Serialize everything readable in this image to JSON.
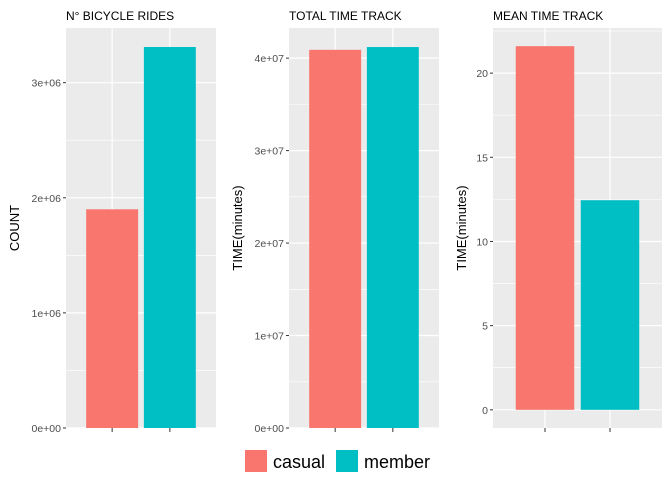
{
  "colors": {
    "casual": "#F8766D",
    "member": "#00BFC4",
    "panel": "#EBEBEB",
    "grid": "#FFFFFF"
  },
  "legend": {
    "items": [
      {
        "label": "casual",
        "color": "#F8766D"
      },
      {
        "label": "member",
        "color": "#00BFC4"
      }
    ]
  },
  "chart_data": [
    {
      "type": "bar",
      "title": "N° BICYCLE RIDES",
      "ylabel": "COUNT",
      "xlabel": "",
      "categories": [
        "casual",
        "member"
      ],
      "values": [
        1900000,
        3310000
      ],
      "ylim": [
        0,
        3475000
      ],
      "yticks": [
        0,
        1000000,
        2000000,
        3000000
      ],
      "ytick_labels": [
        "0e+00",
        "1e+06",
        "2e+06",
        "3e+06"
      ],
      "grid": true
    },
    {
      "type": "bar",
      "title": "TOTAL TIME TRACK",
      "ylabel": "TIME(minutes)",
      "xlabel": "",
      "categories": [
        "casual",
        "member"
      ],
      "values": [
        40900000,
        41200000
      ],
      "ylim": [
        0,
        43260000
      ],
      "yticks": [
        0,
        10000000,
        20000000,
        30000000,
        40000000
      ],
      "ytick_labels": [
        "0e+00",
        "1e+07",
        "2e+07",
        "3e+07",
        "4e+07"
      ],
      "grid": true
    },
    {
      "type": "bar",
      "title": "MEAN TIME TRACK",
      "ylabel": "TIME(minutes)",
      "xlabel": "",
      "categories": [
        "casual",
        "member"
      ],
      "values": [
        21.6,
        12.45
      ],
      "ylim": [
        -1.08,
        22.68
      ],
      "yticks": [
        0,
        5,
        10,
        15,
        20
      ],
      "ytick_labels": [
        "0",
        "5",
        "10",
        "15",
        "20"
      ],
      "grid": true
    }
  ]
}
